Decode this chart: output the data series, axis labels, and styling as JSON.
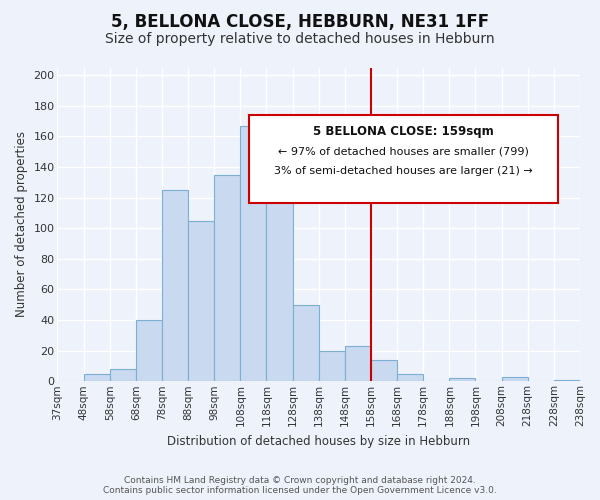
{
  "title": "5, BELLONA CLOSE, HEBBURN, NE31 1FF",
  "subtitle": "Size of property relative to detached houses in Hebburn",
  "xlabel": "Distribution of detached houses by size in Hebburn",
  "ylabel": "Number of detached properties",
  "tick_labels": [
    "37sqm",
    "48sqm",
    "58sqm",
    "68sqm",
    "78sqm",
    "88sqm",
    "98sqm",
    "108sqm",
    "118sqm",
    "128sqm",
    "138sqm",
    "148sqm",
    "158sqm",
    "168sqm",
    "178sqm",
    "188sqm",
    "198sqm",
    "208sqm",
    "218sqm",
    "228sqm",
    "238sqm"
  ],
  "bar_values": [
    0,
    5,
    8,
    40,
    125,
    105,
    135,
    167,
    124,
    50,
    20,
    23,
    14,
    5,
    0,
    2,
    0,
    3,
    0,
    1
  ],
  "bar_color": "#c9d9f0",
  "bar_edge_color": "#7bafd4",
  "vline_color": "#cc0000",
  "vline_index": 12,
  "annotation_title": "5 BELLONA CLOSE: 159sqm",
  "annotation_line1": "← 97% of detached houses are smaller (799)",
  "annotation_line2": "3% of semi-detached houses are larger (21) →",
  "annotation_box_color": "#ffffff",
  "annotation_box_edge": "#cc0000",
  "ylim": [
    0,
    205
  ],
  "yticks": [
    0,
    20,
    40,
    60,
    80,
    100,
    120,
    140,
    160,
    180,
    200
  ],
  "footer_line1": "Contains HM Land Registry data © Crown copyright and database right 2024.",
  "footer_line2": "Contains public sector information licensed under the Open Government Licence v3.0.",
  "background_color": "#eef2fb",
  "grid_color": "#ffffff",
  "title_fontsize": 12,
  "subtitle_fontsize": 10,
  "tick_fontsize": 7.5,
  "footer_fontsize": 6.5
}
